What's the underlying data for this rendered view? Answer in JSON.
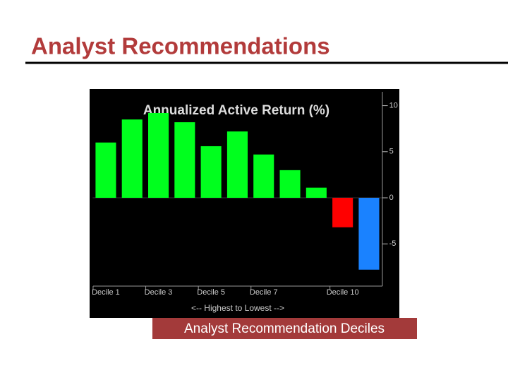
{
  "slide_title": "Analyst Recommendations",
  "caption": "Analyst Recommendation Deciles",
  "chart_data": {
    "type": "bar",
    "title": "Annualized Active Return (%)",
    "x_label": "<-- Highest to Lowest -->",
    "categories": [
      "Decile 1",
      null,
      "Decile 3",
      null,
      "Decile 5",
      null,
      "Decile 7",
      null,
      null,
      "Decile 10",
      null
    ],
    "values": [
      6.0,
      8.5,
      9.2,
      8.2,
      5.6,
      7.2,
      4.7,
      3.0,
      1.1,
      -3.2,
      -7.8
    ],
    "colors": [
      "#00ff1e",
      "#00ff1e",
      "#00ff1e",
      "#00ff1e",
      "#00ff1e",
      "#00ff1e",
      "#00ff1e",
      "#00ff1e",
      "#00ff1e",
      "#ff0000",
      "#1a82ff"
    ],
    "ylim": [
      -9.2,
      11.5
    ],
    "yticks": [
      10,
      5,
      0,
      -5
    ],
    "y_axis_side": "right"
  }
}
